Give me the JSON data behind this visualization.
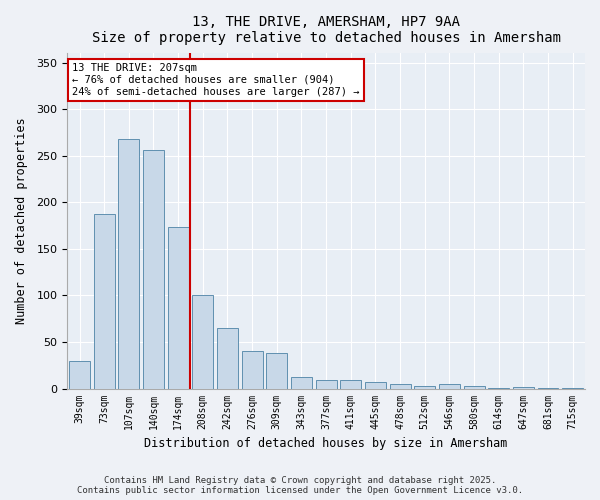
{
  "title": "13, THE DRIVE, AMERSHAM, HP7 9AA",
  "subtitle": "Size of property relative to detached houses in Amersham",
  "xlabel": "Distribution of detached houses by size in Amersham",
  "ylabel": "Number of detached properties",
  "categories": [
    "39sqm",
    "73sqm",
    "107sqm",
    "140sqm",
    "174sqm",
    "208sqm",
    "242sqm",
    "276sqm",
    "309sqm",
    "343sqm",
    "377sqm",
    "411sqm",
    "445sqm",
    "478sqm",
    "512sqm",
    "546sqm",
    "580sqm",
    "614sqm",
    "647sqm",
    "681sqm",
    "715sqm"
  ],
  "values": [
    30,
    187,
    268,
    256,
    174,
    100,
    65,
    40,
    38,
    12,
    9,
    9,
    7,
    5,
    3,
    5,
    3,
    1,
    2,
    1,
    1
  ],
  "bar_color": "#c8d8e8",
  "bar_edge_color": "#6090b0",
  "marker_index": 5,
  "annotation_line1": "13 THE DRIVE: 207sqm",
  "annotation_line2": "← 76% of detached houses are smaller (904)",
  "annotation_line3": "24% of semi-detached houses are larger (287) →",
  "marker_color": "#cc0000",
  "ylim": [
    0,
    360
  ],
  "yticks": [
    0,
    50,
    100,
    150,
    200,
    250,
    300,
    350
  ],
  "fig_background": "#eef1f6",
  "plot_background": "#e8eef5",
  "footer_line1": "Contains HM Land Registry data © Crown copyright and database right 2025.",
  "footer_line2": "Contains public sector information licensed under the Open Government Licence v3.0."
}
